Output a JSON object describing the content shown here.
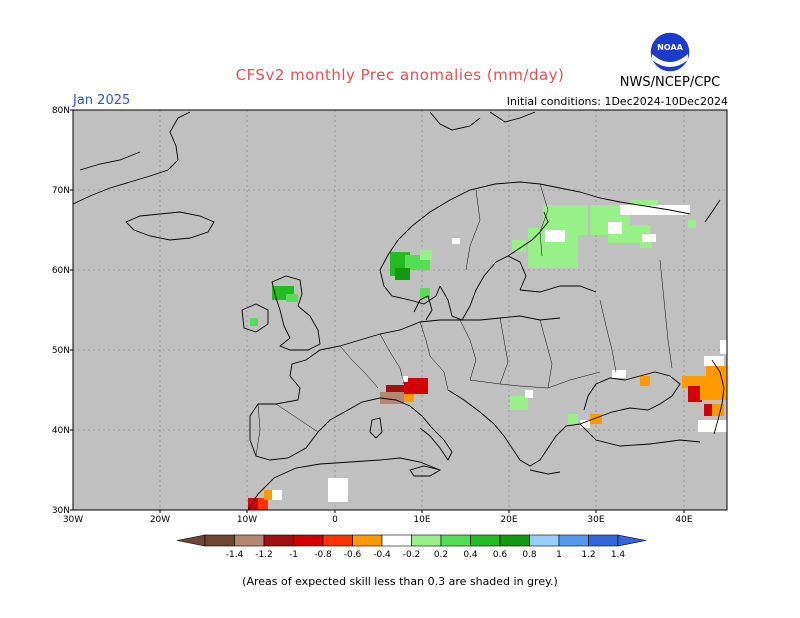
{
  "header": {
    "title": "CFSv2 monthly Prec anomalies (mm/day)",
    "month": "Jan 2025",
    "initial_conditions": "Initial conditions: 1Dec2024-10Dec2024",
    "agency": "NWS/NCEP/CPC",
    "logo_text": "NOAA"
  },
  "map": {
    "region": "Europe",
    "lat_ticks": [
      "30N",
      "40N",
      "50N",
      "60N",
      "70N",
      "80N"
    ],
    "lon_ticks": [
      "30W",
      "20W",
      "10W",
      "0",
      "10E",
      "20E",
      "30E",
      "40E"
    ],
    "background_color": "#c0c0c0",
    "coastline_color": "#000000"
  },
  "legend": {
    "labels": [
      "-1.4",
      "-1.2",
      "-1",
      "-0.8",
      "-0.6",
      "-0.4",
      "-0.2",
      "0.2",
      "0.4",
      "0.6",
      "0.8",
      "1",
      "1.2",
      "1.4"
    ],
    "colors": [
      "#6e4632",
      "#b48773",
      "#a01010",
      "#d20000",
      "#ff3300",
      "#ff9900",
      "#ffffff",
      "#98f088",
      "#55dd55",
      "#22bb22",
      "#119911",
      "#99ccff",
      "#5599ee",
      "#3366dd"
    ]
  },
  "footnote": "(Areas of expected skill less than 0.3 are shaded in grey.)"
}
